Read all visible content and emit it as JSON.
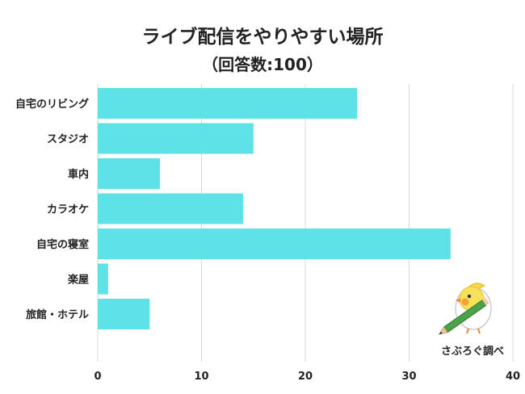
{
  "chart_data": {
    "type": "bar",
    "orientation": "horizontal",
    "title": "ライブ配信をやりやすい場所",
    "subtitle": "（回答数:100）",
    "categories": [
      "自宅のリビング",
      "スタジオ",
      "車内",
      "カラオケ",
      "自宅の寝室",
      "楽屋",
      "旅館・ホテル"
    ],
    "values": [
      25,
      15,
      6,
      14,
      34,
      1,
      5
    ],
    "xlim": [
      0,
      40
    ],
    "xticks": [
      0,
      10,
      20,
      30,
      40
    ],
    "grid": true,
    "bar_color": "#5ee1e7",
    "grid_color": "#d9d9d9"
  },
  "branding": {
    "text": "さぶろぐ調べ",
    "icon": "bird-with-pencil-icon"
  }
}
